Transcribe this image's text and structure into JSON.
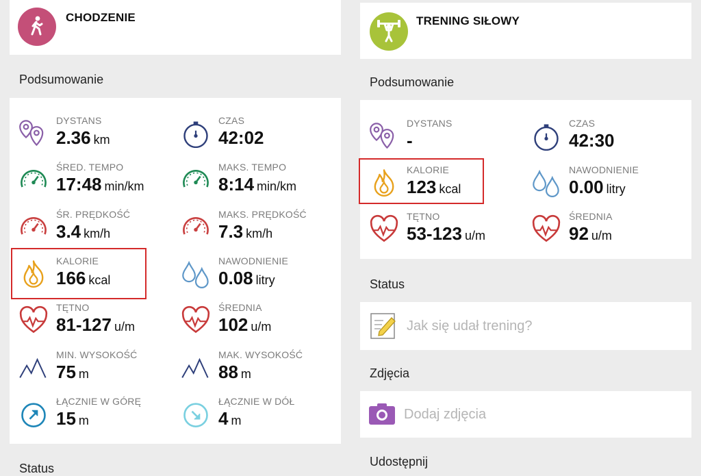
{
  "left": {
    "activity": {
      "title": "CHODZENIE",
      "icon": "walking-person-icon",
      "color": "#c44f78"
    },
    "summary_title": "Podsumowanie",
    "stats": [
      {
        "label": "DYSTANS",
        "value": "2.36",
        "unit": "km",
        "icon": "location-pins-icon"
      },
      {
        "label": "CZAS",
        "value": "42:02",
        "unit": "",
        "icon": "stopwatch-icon"
      },
      {
        "label": "ŚRED. TEMPO",
        "value": "17:48",
        "unit": "min/km",
        "icon": "tempo-gauge-icon"
      },
      {
        "label": "MAKS. TEMPO",
        "value": "8:14",
        "unit": "min/km",
        "icon": "tempo-gauge-icon"
      },
      {
        "label": "ŚR. PRĘDKOŚĆ",
        "value": "3.4",
        "unit": "km/h",
        "icon": "speed-gauge-icon"
      },
      {
        "label": "MAKS. PRĘDKOŚĆ",
        "value": "7.3",
        "unit": "km/h",
        "icon": "speed-gauge-icon"
      },
      {
        "label": "KALORIE",
        "value": "166",
        "unit": "kcal",
        "icon": "flame-icon"
      },
      {
        "label": "NAWODNIENIE",
        "value": "0.08",
        "unit": "litry",
        "icon": "water-drops-icon"
      },
      {
        "label": "TĘTNO",
        "value": "81-127",
        "unit": "u/m",
        "icon": "heart-rate-icon"
      },
      {
        "label": "ŚREDNIA",
        "value": "102",
        "unit": "u/m",
        "icon": "heart-rate-icon"
      },
      {
        "label": "MIN. WYSOKOŚĆ",
        "value": "75",
        "unit": "m",
        "icon": "mountain-icon"
      },
      {
        "label": "MAK. WYSOKOŚĆ",
        "value": "88",
        "unit": "m",
        "icon": "mountain-icon"
      },
      {
        "label": "ŁĄCZNIE W GÓRĘ",
        "value": "15",
        "unit": "m",
        "icon": "arrow-up-circle-icon"
      },
      {
        "label": "ŁĄCZNIE W DÓŁ",
        "value": "4",
        "unit": "m",
        "icon": "arrow-down-circle-icon"
      }
    ],
    "status_title": "Status"
  },
  "right": {
    "activity": {
      "title": "TRENING SIŁOWY",
      "icon": "weightlifter-icon",
      "color": "#a8c33a"
    },
    "summary_title": "Podsumowanie",
    "stats": [
      {
        "label": "DYSTANS",
        "value": "-",
        "unit": "",
        "icon": "location-pins-icon"
      },
      {
        "label": "CZAS",
        "value": "42:30",
        "unit": "",
        "icon": "stopwatch-icon"
      },
      {
        "label": "KALORIE",
        "value": "123",
        "unit": "kcal",
        "icon": "flame-icon"
      },
      {
        "label": "NAWODNIENIE",
        "value": "0.00",
        "unit": "litry",
        "icon": "water-drops-icon"
      },
      {
        "label": "TĘTNO",
        "value": "53-123",
        "unit": "u/m",
        "icon": "heart-rate-icon"
      },
      {
        "label": "ŚREDNIA",
        "value": "92",
        "unit": "u/m",
        "icon": "heart-rate-icon"
      }
    ],
    "status_title": "Status",
    "status_placeholder": "Jak się udał trening?",
    "photos_title": "Zdjęcia",
    "photos_placeholder": "Dodaj zdjęcia",
    "share_title": "Udostępnij"
  }
}
